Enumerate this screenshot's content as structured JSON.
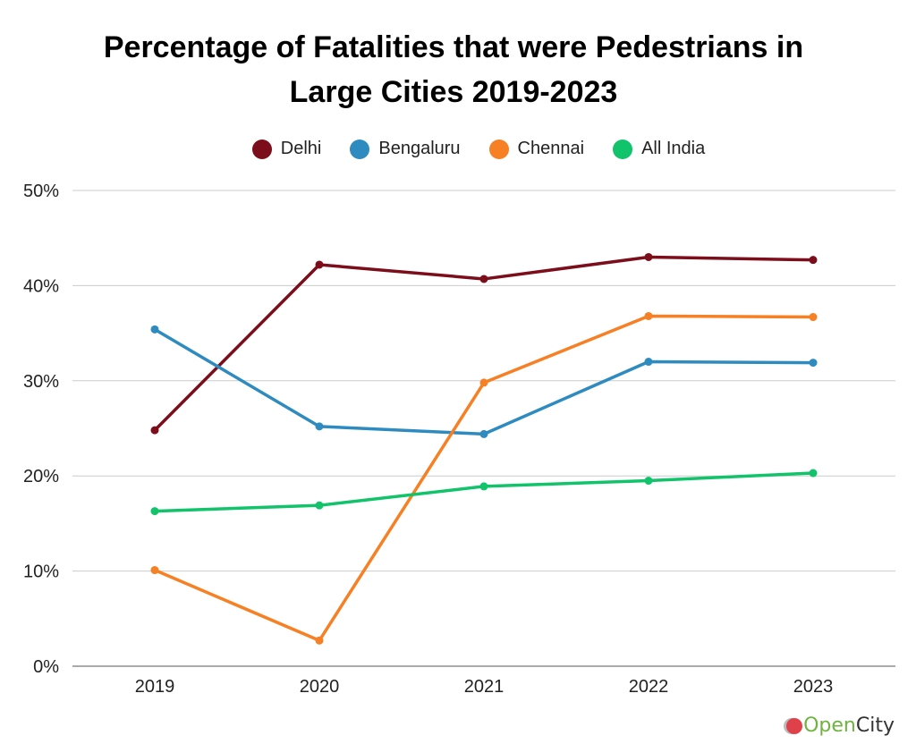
{
  "chart_data": {
    "type": "line",
    "title": "Percentage of Fatalities that were Pedestrians in Large Cities 2019-2023",
    "title_lines": [
      "Percentage of Fatalities that were Pedestrians in",
      "Large Cities 2019-2023"
    ],
    "xlabel": "",
    "ylabel": "",
    "x": [
      "2019",
      "2020",
      "2021",
      "2022",
      "2023"
    ],
    "ylim": [
      0,
      50
    ],
    "yticks": [
      0,
      10,
      20,
      30,
      40,
      50
    ],
    "ytick_labels": [
      "0%",
      "10%",
      "20%",
      "30%",
      "40%",
      "50%"
    ],
    "grid": true,
    "legend_position": "top-center",
    "series": [
      {
        "name": "Delhi",
        "color": "#7b0e1a",
        "values": [
          24.8,
          42.2,
          40.7,
          43.0,
          42.7
        ]
      },
      {
        "name": "Bengaluru",
        "color": "#2e8bc0",
        "values": [
          35.4,
          25.2,
          24.4,
          32.0,
          31.9
        ]
      },
      {
        "name": "Chennai",
        "color": "#f77f24",
        "values": [
          10.1,
          2.7,
          29.8,
          36.8,
          36.7
        ]
      },
      {
        "name": "All India",
        "color": "#11c36a",
        "values": [
          16.3,
          16.9,
          18.9,
          19.5,
          20.3
        ]
      }
    ]
  },
  "branding": {
    "logo_part1": "Open",
    "logo_part2": "City"
  }
}
